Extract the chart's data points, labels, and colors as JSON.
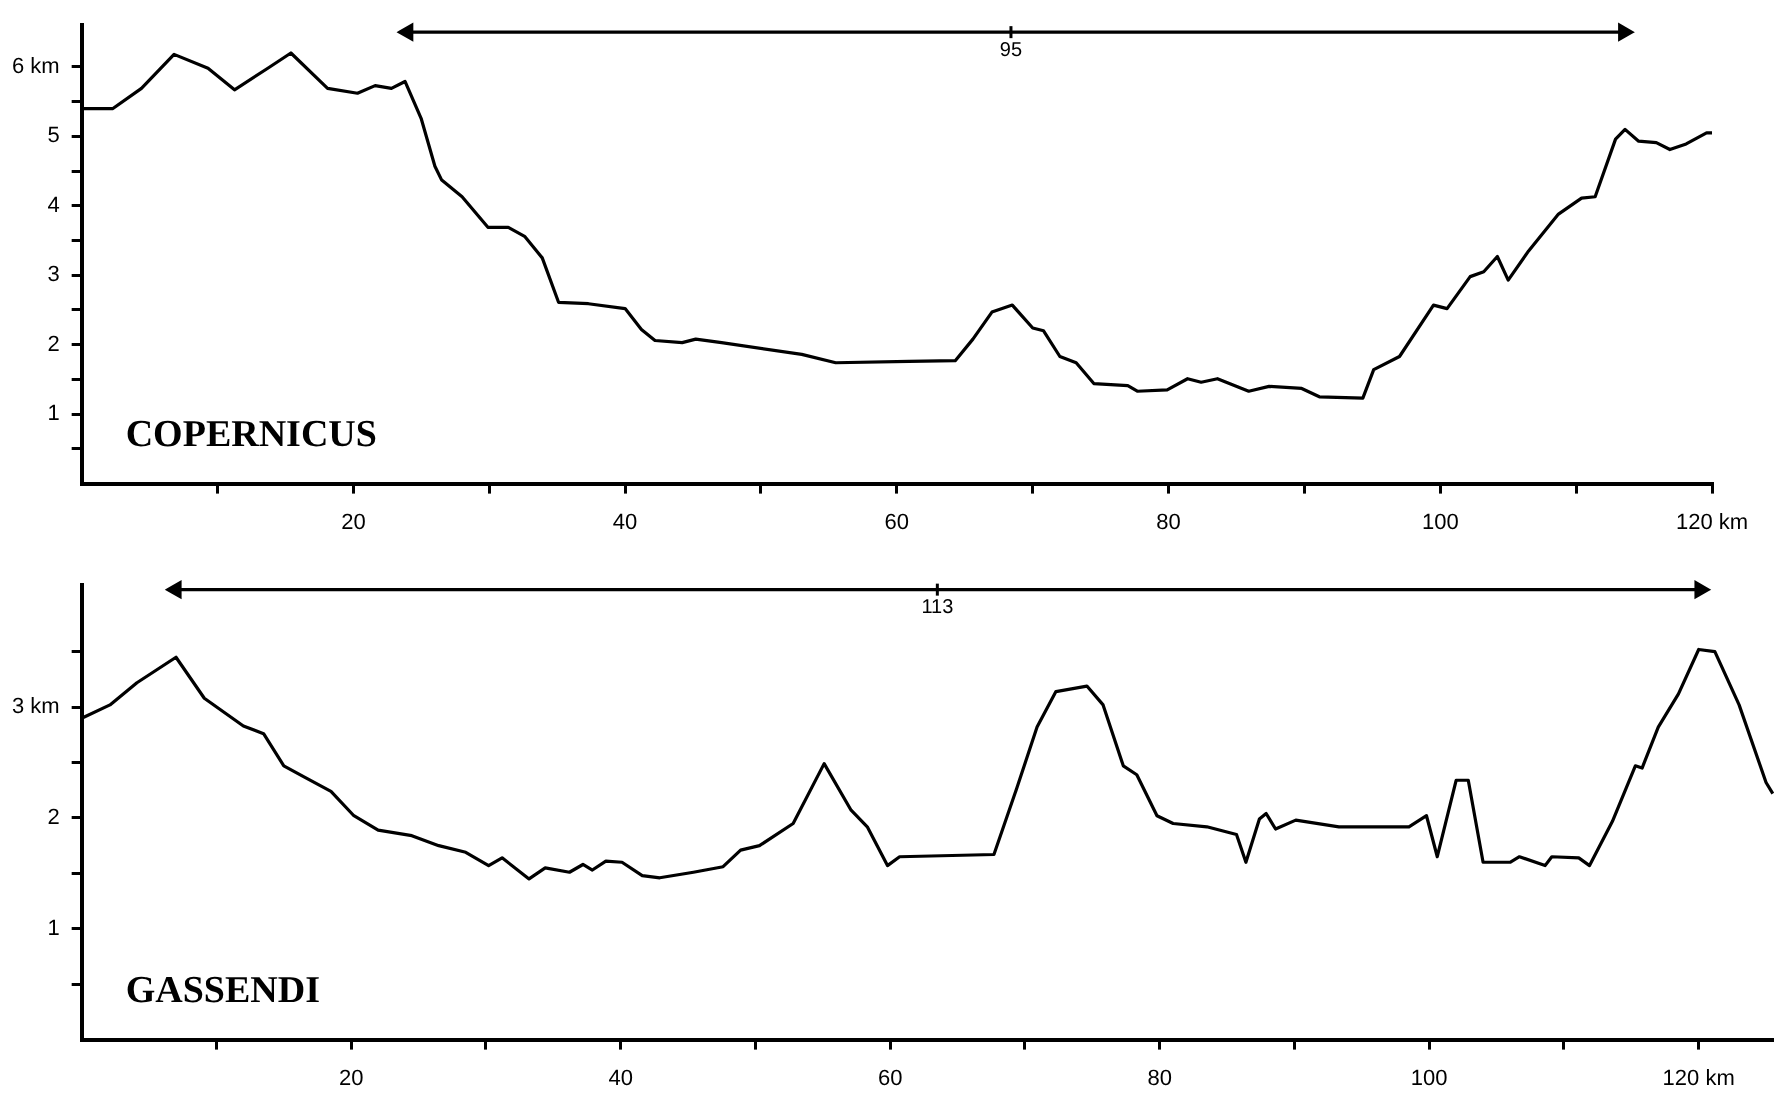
{
  "chart_data": [
    {
      "type": "line",
      "xlim": [
        0,
        120
      ],
      "ylim": [
        0,
        6.6
      ],
      "xticks": [
        {
          "value": 10,
          "label": null
        },
        20,
        {
          "value": 30,
          "label": null
        },
        40,
        {
          "value": 50,
          "label": null
        },
        60,
        {
          "value": 70,
          "label": null
        },
        80,
        {
          "value": 90,
          "label": null
        },
        100,
        {
          "value": 110,
          "label": null
        },
        {
          "value": 120,
          "label": "120 km"
        }
      ],
      "yticks": [
        {
          "value": 0.5,
          "label": null
        },
        1,
        {
          "value": 1.5,
          "label": null
        },
        2,
        {
          "value": 2.5,
          "label": null
        },
        3,
        {
          "value": 3.5,
          "label": null
        },
        4,
        {
          "value": 4.5,
          "label": null
        },
        5,
        {
          "value": 5.5,
          "label": null
        },
        {
          "value": 6,
          "label": "6 km"
        }
      ],
      "grid": false,
      "legend": false,
      "annotations": [
        "COPERNICUS",
        {
          "text": "95",
          "x": 68.4,
          "y": 6.5
        }
      ],
      "series": [
        {
          "color": "#000000",
          "x": [
            0,
            2.3,
            4.4,
            6.8,
            9.3,
            11.25,
            13.7,
            15.4,
            18.1,
            20.3,
            21.6,
            22.8,
            23.8,
            25,
            26,
            26.5,
            28,
            29.9,
            31.4,
            32.6,
            33.9,
            35.1,
            37.3,
            40,
            41.2,
            42.2,
            44.2,
            45.2,
            47.1,
            53,
            55.5,
            60.9,
            64.3,
            65.6,
            67,
            68.5,
            70,
            70.8,
            72,
            73.2,
            74.5,
            77,
            77.7,
            79.9,
            81.4,
            82.4,
            83.6,
            85.9,
            87.4,
            89.8,
            91.1,
            94.3,
            95.1,
            97,
            99.5,
            100.5,
            102.2,
            103.2,
            104.2,
            105,
            106.5,
            108.7,
            110.4,
            111.4,
            112.9,
            113.6,
            114.6,
            115.9,
            116.9,
            118.1,
            119.6,
            120
          ],
          "values": [
            5.4,
            5.4,
            5.69,
            6.18,
            5.98,
            5.67,
            5.98,
            6.2,
            5.69,
            5.62,
            5.73,
            5.69,
            5.79,
            5.25,
            4.57,
            4.37,
            4.13,
            3.69,
            3.69,
            3.56,
            3.25,
            2.61,
            2.59,
            2.52,
            2.22,
            2.06,
            2.03,
            2.08,
            2.03,
            1.86,
            1.74,
            1.76,
            1.77,
            2.08,
            2.47,
            2.57,
            2.24,
            2.2,
            1.83,
            1.74,
            1.44,
            1.41,
            1.33,
            1.35,
            1.51,
            1.46,
            1.51,
            1.33,
            1.4,
            1.37,
            1.25,
            1.23,
            1.64,
            1.83,
            2.57,
            2.52,
            2.98,
            3.05,
            3.27,
            2.93,
            3.35,
            3.88,
            4.11,
            4.13,
            4.96,
            5.1,
            4.93,
            4.91,
            4.81,
            4.89,
            5.05,
            5.05
          ]
        },
        {
          "color": "#000000",
          "marker": "triangle",
          "x": [
            24,
            113.5
          ],
          "values": [
            6.5,
            6.5
          ]
        }
      ]
    },
    {
      "type": "line",
      "xlim": [
        0,
        125.5
      ],
      "ylim": [
        0,
        4.1
      ],
      "xticks": [
        {
          "value": 10,
          "label": null
        },
        20,
        {
          "value": 30,
          "label": null
        },
        40,
        {
          "value": 50,
          "label": null
        },
        60,
        {
          "value": 70,
          "label": null
        },
        80,
        {
          "value": 90,
          "label": null
        },
        100,
        {
          "value": 110,
          "label": null
        },
        {
          "value": 120,
          "label": "120 km"
        }
      ],
      "yticks": [
        {
          "value": 0.5,
          "label": null
        },
        1,
        {
          "value": 1.5,
          "label": null
        },
        2,
        {
          "value": 2.5,
          "label": null
        },
        {
          "value": 3,
          "label": "3 km"
        },
        {
          "value": 3.5,
          "label": null
        }
      ],
      "grid": false,
      "legend": false,
      "annotations": [
        "GASSENDI",
        {
          "text": "113",
          "x": 63.5,
          "y": 4.06
        }
      ],
      "series": [
        {
          "color": "#000000",
          "x": [
            0,
            2.1,
            4.1,
            7,
            9.1,
            12,
            13.5,
            15,
            16.5,
            18.5,
            20.2,
            22,
            24.5,
            26.5,
            28.5,
            30.2,
            31.2,
            33.2,
            34.4,
            36.2,
            37.2,
            37.9,
            38.9,
            40.1,
            41.6,
            42.9,
            45.4,
            47.6,
            48.9,
            50.3,
            52.8,
            55.1,
            57.1,
            58.3,
            59.8,
            60.7,
            67.7,
            69.4,
            70.9,
            72.3,
            74.6,
            75.8,
            77.3,
            78.3,
            79.8,
            81,
            83.5,
            85.7,
            86.4,
            87.4,
            87.9,
            88.6,
            90.1,
            93.3,
            98.5,
            99.8,
            100.6,
            102,
            102.9,
            104,
            106,
            106.7,
            108.6,
            109.1,
            111.1,
            111.9,
            113.6,
            115.3,
            115.8,
            117,
            118.5,
            120,
            121.2,
            123,
            125,
            125.5
          ],
          "values": [
            2.9,
            3.02,
            3.22,
            3.45,
            3.08,
            2.83,
            2.76,
            2.47,
            2.37,
            2.24,
            2.02,
            1.89,
            1.84,
            1.75,
            1.69,
            1.57,
            1.64,
            1.45,
            1.55,
            1.51,
            1.58,
            1.53,
            1.61,
            1.6,
            1.48,
            1.46,
            1.51,
            1.56,
            1.71,
            1.75,
            1.95,
            2.49,
            2.07,
            1.92,
            1.57,
            1.65,
            1.67,
            2.27,
            2.82,
            3.14,
            3.19,
            3.02,
            2.47,
            2.39,
            2.02,
            1.95,
            1.92,
            1.85,
            1.6,
            1.99,
            2.04,
            1.9,
            1.98,
            1.92,
            1.92,
            2.02,
            1.65,
            2.34,
            2.34,
            1.6,
            1.6,
            1.65,
            1.57,
            1.65,
            1.64,
            1.57,
            1.97,
            2.47,
            2.45,
            2.82,
            3.12,
            3.52,
            3.5,
            3.02,
            2.32,
            2.22
          ]
        },
        {
          "color": "#000000",
          "marker": "triangle",
          "x": [
            7,
            120.1
          ],
          "values": [
            4.06,
            4.06
          ]
        }
      ]
    }
  ]
}
